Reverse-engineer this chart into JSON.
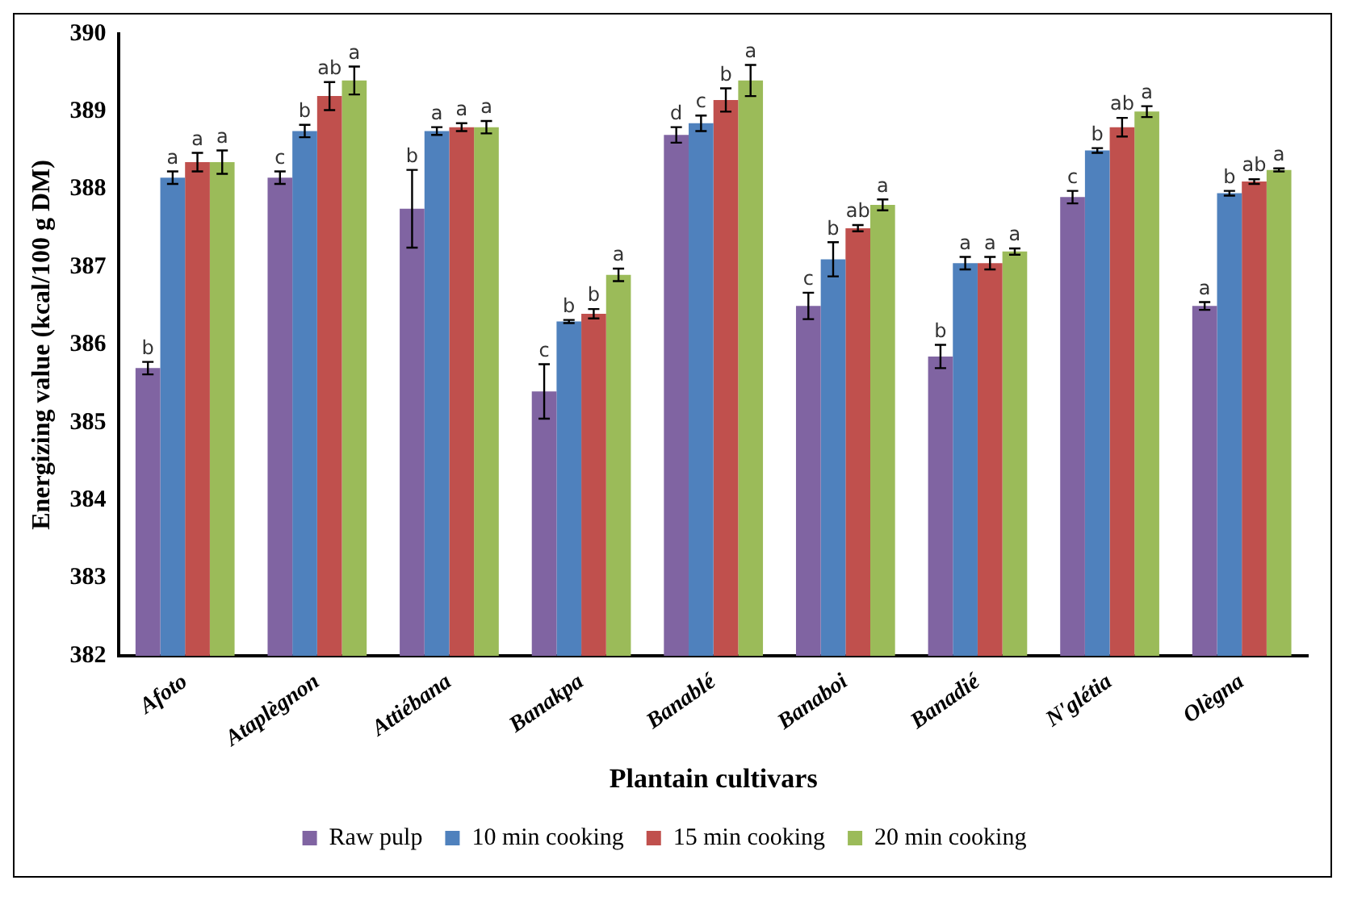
{
  "chart_data": {
    "type": "bar",
    "xlabel": "Plantain cultivars",
    "ylabel": "Energizing value (kcal/100 g DM)",
    "categories": [
      "Afoto",
      "Ataplègnon",
      "Attiébana",
      "Banakpa",
      "Banablé",
      "Banaboi",
      "Banadié",
      "N'glétia",
      "Olègna"
    ],
    "series": [
      {
        "name": "Raw pulp",
        "color": "#8064a2",
        "values": [
          385.7,
          388.15,
          387.75,
          385.4,
          388.7,
          386.5,
          385.85,
          387.9,
          386.5
        ],
        "errors": [
          0.08,
          0.08,
          0.5,
          0.35,
          0.1,
          0.17,
          0.15,
          0.08,
          0.05
        ],
        "value_labels": [
          "b",
          "c",
          "b",
          "c",
          "d",
          "c",
          "b",
          "c",
          "a"
        ]
      },
      {
        "name": "10 min cooking",
        "color": "#4f81bd",
        "values": [
          388.15,
          388.75,
          388.75,
          386.3,
          388.85,
          387.1,
          387.05,
          388.5,
          387.95
        ],
        "errors": [
          0.08,
          0.08,
          0.05,
          0.02,
          0.1,
          0.22,
          0.08,
          0.03,
          0.03
        ],
        "value_labels": [
          "a",
          "b",
          "a",
          "b",
          "c",
          "b",
          "a",
          "b",
          "b"
        ]
      },
      {
        "name": "15 min cooking",
        "color": "#c0504d",
        "values": [
          388.35,
          389.2,
          388.8,
          386.4,
          389.15,
          387.5,
          387.05,
          388.8,
          388.1
        ],
        "errors": [
          0.12,
          0.18,
          0.05,
          0.06,
          0.15,
          0.04,
          0.08,
          0.12,
          0.03
        ],
        "value_labels": [
          "a",
          "ab",
          "a",
          "b",
          "b",
          "ab",
          "a",
          "ab",
          "ab"
        ]
      },
      {
        "name": "20 min cooking",
        "color": "#9bbb59",
        "values": [
          388.35,
          389.4,
          388.8,
          386.9,
          389.4,
          387.8,
          387.2,
          389.0,
          388.25
        ],
        "errors": [
          0.15,
          0.18,
          0.08,
          0.08,
          0.2,
          0.07,
          0.04,
          0.07,
          0.02
        ],
        "value_labels": [
          "a",
          "a",
          "a",
          "a",
          "a",
          "a",
          "a",
          "a",
          "a"
        ]
      }
    ],
    "ylim": [
      382,
      390
    ],
    "yticks": [
      382,
      383,
      384,
      385,
      386,
      387,
      388,
      389,
      390
    ],
    "grid": false,
    "legend": "bottom"
  }
}
